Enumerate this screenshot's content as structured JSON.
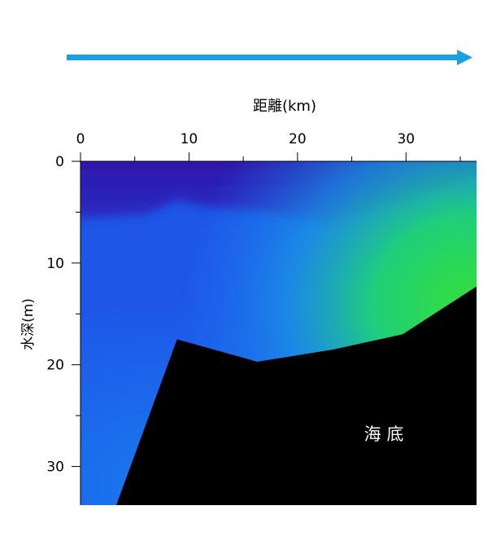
{
  "chart_data": {
    "type": "heatmap",
    "title": "",
    "xlabel": "距離(km)",
    "ylabel": "水深(m)",
    "xlim": [
      0,
      36.5
    ],
    "ylim": [
      0,
      33.8
    ],
    "y_inverted": true,
    "x_axis_position": "top",
    "xticks": [
      0,
      10,
      20,
      30
    ],
    "yticks": [
      0,
      10,
      20,
      30
    ],
    "grid": false,
    "direction_arrow": "left-to-right",
    "seabed_label": "海 底",
    "colors": {
      "surface_layer": "#2e14aa",
      "mid_water": "#1e56e8",
      "bottom_water": "#1a78ee",
      "high_value_patch": "#35e035",
      "seabed": "#000000",
      "arrow": "#1aa0e0"
    },
    "seabed_profile": {
      "x": [
        3.3,
        8.9,
        16.3,
        23.3,
        29.7,
        36.5
      ],
      "depth": [
        33.8,
        17.5,
        19.7,
        18.5,
        17.0,
        12.3
      ]
    },
    "color_field_notes": [
      {
        "x_range": [
          0,
          36.5
        ],
        "depth_range": [
          0,
          6
        ],
        "class": "surface_layer"
      },
      {
        "x_range": [
          33,
          36.5
        ],
        "depth_range": [
          3,
          13
        ],
        "class": "high_value_patch"
      }
    ]
  }
}
